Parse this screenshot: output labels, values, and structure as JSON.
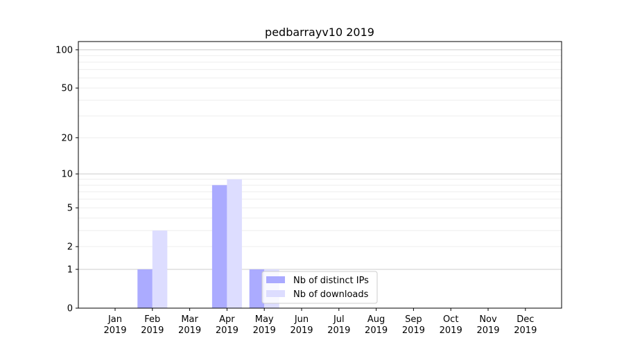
{
  "chart_data": {
    "type": "bar",
    "title": "pedbarrayv10 2019",
    "xlabel": "",
    "ylabel": "",
    "yscale": "log(1+y)",
    "ylim": [
      0,
      116
    ],
    "grid": "horizontal, major and minor",
    "categories": [
      "Jan\n2019",
      "Feb\n2019",
      "Mar\n2019",
      "Apr\n2019",
      "May\n2019",
      "Jun\n2019",
      "Jul\n2019",
      "Aug\n2019",
      "Sep\n2019",
      "Oct\n2019",
      "Nov\n2019",
      "Dec\n2019"
    ],
    "yticks": [
      0,
      1,
      2,
      5,
      10,
      20,
      50,
      100
    ],
    "series": [
      {
        "name": "Nb of distinct IPs",
        "color": "#aaaaff",
        "values": [
          0,
          1,
          0,
          8,
          1,
          0,
          0,
          0,
          0,
          0,
          0,
          0
        ]
      },
      {
        "name": "Nb of downloads",
        "color": "#ddddff",
        "values": [
          0,
          3,
          0,
          9,
          1,
          0,
          0,
          0,
          0,
          0,
          0,
          0
        ]
      }
    ],
    "legend": "bottom-center"
  }
}
